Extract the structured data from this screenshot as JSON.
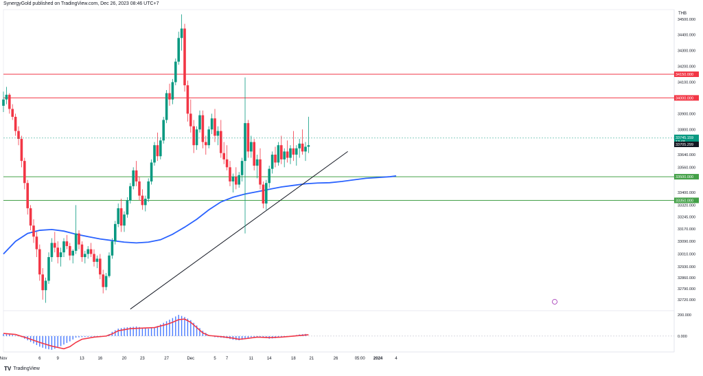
{
  "header": "SynergyGold published on TradingView.com, Dec 26, 2023 08:46 UTC+7",
  "footer": {
    "brand": "TradingView",
    "logo": "TV"
  },
  "currency": "THB",
  "colors": {
    "up": "#089981",
    "down": "#f23645",
    "ma": "#2962ff",
    "resistance": "#f23645",
    "support": "#43a047",
    "trend": "#131722",
    "hist": "#2962ff",
    "signal": "#f23645",
    "pricetag": "#089981",
    "refprice": "#131722"
  },
  "chart_data": {
    "type": "candlestick",
    "x_tick_labels": [
      "Nov",
      "6",
      "9",
      "13",
      "16",
      "20",
      "23",
      "27",
      "Dec",
      "5",
      "7",
      "11",
      "14",
      "18",
      "21",
      "26",
      "05:00",
      "2024",
      "4"
    ],
    "y_tick_labels": [
      "34500.000",
      "34400.000",
      "34300.000",
      "34200.000",
      "34100.000",
      "33900.000",
      "33800.000",
      "33640.000",
      "33560.000",
      "33400.000",
      "33320.000",
      "33245.000",
      "33170.000",
      "33090.000",
      "33010.000",
      "32930.000",
      "32860.000",
      "32790.000",
      "32720.000"
    ],
    "y_range": [
      32650,
      34560
    ],
    "horizontal_levels": [
      {
        "value": 34150,
        "label": "34150.000",
        "color": "#f23645"
      },
      {
        "value": 34000,
        "label": "34000.000",
        "color": "#f23645"
      },
      {
        "value": 33500,
        "label": "33500.000",
        "color": "#43a047"
      },
      {
        "value": 33350,
        "label": "33350.000",
        "color": "#43a047"
      }
    ],
    "last_price": {
      "value": 33745.159,
      "label": "33745.159",
      "countdown": "13:48"
    },
    "reference_price": {
      "value": 33705.299,
      "label": "33705.299"
    },
    "trendline": {
      "from": {
        "date": "Nov 22",
        "price": 32660
      },
      "to": {
        "date": "Dec 28",
        "price": 33660
      }
    },
    "moving_average": {
      "name": "MA",
      "points": [
        [
          31,
          33010
        ],
        [
          33,
          33090
        ],
        [
          35,
          33140
        ],
        [
          37,
          33160
        ],
        [
          39,
          33165
        ],
        [
          41,
          33155
        ],
        [
          43,
          33135
        ],
        [
          45,
          33120
        ],
        [
          47,
          33105
        ],
        [
          49,
          33095
        ],
        [
          51,
          33085
        ],
        [
          53,
          33080
        ],
        [
          55,
          33085
        ],
        [
          57,
          33100
        ],
        [
          59,
          33135
        ],
        [
          61,
          33180
        ],
        [
          63,
          33230
        ],
        [
          65,
          33290
        ],
        [
          67,
          33340
        ],
        [
          69,
          33370
        ],
        [
          71,
          33390
        ],
        [
          73,
          33405
        ],
        [
          75,
          33420
        ],
        [
          77,
          33435
        ],
        [
          79,
          33445
        ],
        [
          81,
          33455
        ],
        [
          83,
          33460
        ],
        [
          85,
          33462
        ],
        [
          87,
          33470
        ],
        [
          89,
          33480
        ],
        [
          91,
          33490
        ],
        [
          93,
          33495
        ],
        [
          95,
          33500
        ],
        [
          96,
          33505
        ]
      ]
    },
    "candles": [
      [
        31,
        33950,
        34040,
        33910,
        33990
      ],
      [
        31.5,
        33990,
        34070,
        33960,
        34020
      ],
      [
        32,
        34020,
        34030,
        33900,
        33930
      ],
      [
        32.5,
        33930,
        33960,
        33860,
        33880
      ],
      [
        33,
        33880,
        33900,
        33760,
        33790
      ],
      [
        33.5,
        33790,
        33820,
        33700,
        33740
      ],
      [
        34,
        33740,
        33760,
        33560,
        33600
      ],
      [
        34.5,
        33600,
        33620,
        33420,
        33460
      ],
      [
        35,
        33460,
        33480,
        33260,
        33300
      ],
      [
        35.5,
        33300,
        33320,
        33160,
        33190
      ],
      [
        36,
        33190,
        33230,
        33080,
        33120
      ],
      [
        36.5,
        33120,
        33150,
        32990,
        33040
      ],
      [
        37,
        33040,
        33070,
        32840,
        32880
      ],
      [
        37.5,
        32880,
        32920,
        32720,
        32780
      ],
      [
        38,
        32780,
        32860,
        32700,
        32840
      ],
      [
        38.5,
        32840,
        33020,
        32820,
        32990
      ],
      [
        39,
        32990,
        33110,
        32960,
        33080
      ],
      [
        39.5,
        33080,
        33150,
        33020,
        33050
      ],
      [
        40,
        33050,
        33090,
        32950,
        32990
      ],
      [
        40.5,
        32990,
        33050,
        32930,
        33020
      ],
      [
        41,
        33020,
        33110,
        32990,
        33090
      ],
      [
        41.5,
        33090,
        33130,
        33040,
        33060
      ],
      [
        42,
        33060,
        33080,
        32970,
        33000
      ],
      [
        42.5,
        33000,
        33040,
        32950,
        33030
      ],
      [
        43,
        33030,
        33320,
        33010,
        33140
      ],
      [
        43.5,
        33140,
        33160,
        33040,
        33070
      ],
      [
        44,
        33070,
        33090,
        32960,
        32990
      ],
      [
        44.5,
        32990,
        33030,
        32950,
        33010
      ],
      [
        45,
        33010,
        33060,
        32980,
        33040
      ],
      [
        45.5,
        33040,
        33080,
        32990,
        33010
      ],
      [
        46,
        33010,
        33040,
        32930,
        32960
      ],
      [
        46.5,
        32960,
        33000,
        32920,
        32980
      ],
      [
        47,
        32980,
        33010,
        32850,
        32880
      ],
      [
        47.5,
        32880,
        32910,
        32760,
        32800
      ],
      [
        48,
        32800,
        32890,
        32780,
        32870
      ],
      [
        48.5,
        32870,
        33020,
        32860,
        33000
      ],
      [
        49,
        33000,
        33110,
        32980,
        33090
      ],
      [
        49.5,
        33090,
        33220,
        33070,
        33200
      ],
      [
        50,
        33200,
        33330,
        33180,
        33300
      ],
      [
        50.5,
        33300,
        33360,
        33150,
        33190
      ],
      [
        51,
        33190,
        33280,
        33150,
        33260
      ],
      [
        51.5,
        33260,
        33370,
        33240,
        33350
      ],
      [
        52,
        33350,
        33460,
        33330,
        33440
      ],
      [
        52.5,
        33440,
        33560,
        33420,
        33540
      ],
      [
        53,
        33540,
        33600,
        33440,
        33470
      ],
      [
        53.5,
        33470,
        33500,
        33350,
        33380
      ],
      [
        54,
        33380,
        33420,
        33290,
        33320
      ],
      [
        54.5,
        33320,
        33380,
        33280,
        33360
      ],
      [
        55,
        33360,
        33490,
        33340,
        33470
      ],
      [
        55.5,
        33470,
        33610,
        33450,
        33590
      ],
      [
        56,
        33590,
        33720,
        33570,
        33700
      ],
      [
        56.5,
        33700,
        33780,
        33600,
        33630
      ],
      [
        57,
        33630,
        33750,
        33610,
        33730
      ],
      [
        57.5,
        33730,
        33880,
        33710,
        33860
      ],
      [
        58,
        33860,
        34050,
        33840,
        34030
      ],
      [
        58.5,
        34030,
        34090,
        33950,
        33990
      ],
      [
        59,
        33990,
        34120,
        33960,
        34100
      ],
      [
        59.5,
        34100,
        34250,
        34080,
        34230
      ],
      [
        60,
        34230,
        34420,
        34210,
        34380
      ],
      [
        60.5,
        34380,
        34530,
        34300,
        34440
      ],
      [
        61,
        34440,
        34470,
        34040,
        34080
      ],
      [
        61.5,
        34080,
        34110,
        33850,
        33900
      ],
      [
        62,
        33900,
        33990,
        33780,
        33820
      ],
      [
        62.5,
        33820,
        33860,
        33650,
        33700
      ],
      [
        63,
        33700,
        33820,
        33670,
        33800
      ],
      [
        63.5,
        33800,
        33920,
        33780,
        33890
      ],
      [
        64,
        33890,
        33920,
        33680,
        33720
      ],
      [
        64.5,
        33720,
        33760,
        33640,
        33700
      ],
      [
        65,
        33700,
        33820,
        33680,
        33800
      ],
      [
        65.5,
        33800,
        33900,
        33770,
        33870
      ],
      [
        66,
        33870,
        33930,
        33720,
        33760
      ],
      [
        66.5,
        33760,
        33820,
        33700,
        33790
      ],
      [
        67,
        33790,
        33860,
        33620,
        33650
      ],
      [
        67.5,
        33650,
        33720,
        33580,
        33610
      ],
      [
        68,
        33610,
        33700,
        33540,
        33560
      ],
      [
        68.5,
        33560,
        33600,
        33440,
        33470
      ],
      [
        69,
        33470,
        33520,
        33400,
        33500
      ],
      [
        69.5,
        33500,
        33560,
        33420,
        33450
      ],
      [
        70,
        33450,
        33530,
        33430,
        33510
      ],
      [
        70.5,
        33510,
        33620,
        33470,
        33600
      ],
      [
        71,
        33600,
        34130,
        33140,
        33840
      ],
      [
        71.5,
        33840,
        33860,
        33620,
        33660
      ],
      [
        72,
        33660,
        33760,
        33620,
        33720
      ],
      [
        72.5,
        33720,
        33740,
        33540,
        33570
      ],
      [
        73,
        33570,
        33640,
        33490,
        33610
      ],
      [
        73.5,
        33610,
        33680,
        33420,
        33450
      ],
      [
        74,
        33450,
        33470,
        33300,
        33330
      ],
      [
        74.5,
        33330,
        33480,
        33290,
        33460
      ],
      [
        75,
        33460,
        33570,
        33430,
        33550
      ],
      [
        75.5,
        33550,
        33660,
        33520,
        33640
      ],
      [
        76,
        33640,
        33690,
        33560,
        33590
      ],
      [
        76.5,
        33590,
        33720,
        33570,
        33700
      ],
      [
        77,
        33700,
        33760,
        33580,
        33610
      ],
      [
        77.5,
        33610,
        33680,
        33560,
        33660
      ],
      [
        78,
        33660,
        33730,
        33590,
        33620
      ],
      [
        78.5,
        33620,
        33700,
        33580,
        33680
      ],
      [
        79,
        33680,
        33790,
        33600,
        33640
      ],
      [
        79.5,
        33640,
        33700,
        33570,
        33680
      ],
      [
        80,
        33680,
        33740,
        33620,
        33710
      ],
      [
        80.5,
        33710,
        33800,
        33640,
        33660
      ],
      [
        81,
        33660,
        33720,
        33600,
        33690
      ],
      [
        81.5,
        33690,
        33880,
        33650,
        33700
      ]
    ],
    "macd": {
      "zero_label": "0.000",
      "top_label": "200.000",
      "range": [
        -150,
        220
      ],
      "histogram": [
        [
          31,
          20
        ],
        [
          32,
          15
        ],
        [
          33,
          5
        ],
        [
          34,
          -10
        ],
        [
          35,
          -40
        ],
        [
          36,
          -70
        ],
        [
          37,
          -100
        ],
        [
          38,
          -120
        ],
        [
          39,
          -130
        ],
        [
          40,
          -110
        ],
        [
          41,
          -80
        ],
        [
          42,
          -50
        ],
        [
          43,
          -15
        ],
        [
          44,
          -10
        ],
        [
          45,
          -8
        ],
        [
          46,
          -5
        ],
        [
          47,
          -10
        ],
        [
          48,
          -5
        ],
        [
          49,
          40
        ],
        [
          50,
          70
        ],
        [
          51,
          80
        ],
        [
          52,
          85
        ],
        [
          53,
          90
        ],
        [
          54,
          80
        ],
        [
          55,
          70
        ],
        [
          56,
          80
        ],
        [
          57,
          110
        ],
        [
          58,
          140
        ],
        [
          59,
          170
        ],
        [
          60,
          200
        ],
        [
          61,
          180
        ],
        [
          62,
          150
        ],
        [
          63,
          100
        ],
        [
          64,
          50
        ],
        [
          65,
          10
        ],
        [
          66,
          -10
        ],
        [
          67,
          -15
        ],
        [
          68,
          -20
        ],
        [
          69,
          -35
        ],
        [
          70,
          -40
        ],
        [
          71,
          -30
        ],
        [
          72,
          -10
        ],
        [
          73,
          -8
        ],
        [
          74,
          -12
        ],
        [
          75,
          -25
        ],
        [
          76,
          -20
        ],
        [
          77,
          -10
        ],
        [
          78,
          0
        ],
        [
          79,
          5
        ],
        [
          80,
          15
        ],
        [
          81,
          20
        ],
        [
          81.5,
          25
        ]
      ],
      "signal": [
        [
          31,
          25
        ],
        [
          33,
          15
        ],
        [
          35,
          -20
        ],
        [
          37,
          -60
        ],
        [
          39,
          -95
        ],
        [
          41,
          -120
        ],
        [
          42,
          -100
        ],
        [
          43,
          -60
        ],
        [
          44,
          -30
        ],
        [
          46,
          -10
        ],
        [
          48,
          0
        ],
        [
          49,
          20
        ],
        [
          50,
          50
        ],
        [
          52,
          70
        ],
        [
          54,
          75
        ],
        [
          56,
          80
        ],
        [
          58,
          110
        ],
        [
          59,
          130
        ],
        [
          60,
          155
        ],
        [
          61,
          160
        ],
        [
          62,
          130
        ],
        [
          63,
          80
        ],
        [
          64,
          30
        ],
        [
          65,
          5
        ],
        [
          67,
          -5
        ],
        [
          69,
          -20
        ],
        [
          70,
          -30
        ],
        [
          71,
          -25
        ],
        [
          73,
          -10
        ],
        [
          75,
          -15
        ],
        [
          77,
          -10
        ],
        [
          79,
          0
        ],
        [
          81,
          10
        ],
        [
          81.5,
          12
        ]
      ]
    }
  }
}
